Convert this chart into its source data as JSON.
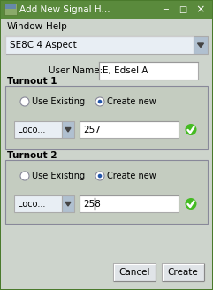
{
  "title_bar_text": "Add New Signal H...",
  "title_bar_color": "#5a8a3c",
  "title_bar_text_color": "#ffffff",
  "menu_item1": "Window",
  "menu_item2": "Help",
  "dropdown_text": "SE8C 4 Aspect",
  "user_name_label": "User Name:",
  "user_name_value": "E, Edsel A",
  "turnout1_label": "Turnout 1",
  "turnout1_radio1": "Use Existing",
  "turnout1_radio2": "Create new",
  "turnout1_dropdown": "Loco...",
  "turnout1_value": "257",
  "turnout2_label": "Turnout 2",
  "turnout2_radio1": "Use Existing",
  "turnout2_radio2": "Create new",
  "turnout2_dropdown": "Loco...",
  "turnout2_value": "258",
  "btn_cancel": "Cancel",
  "btn_create": "Create",
  "bg_color": "#cdd4cc",
  "group_bg": "#c4ccc0",
  "white": "#ffffff",
  "green_check": "#44bb22",
  "radio_fill": "#ffffff",
  "radio_dot": "#2255aa",
  "dropdown_bg": "#e8eef4",
  "dropdown_arrow_bg": "#b0c0d0",
  "btn_bg": "#e0e4e8",
  "border_dark": "#888899",
  "border_mid": "#aaaaaa",
  "text_color": "#000000",
  "title_icon_bg": "#88aa66",
  "outer_border": "#4a7a2c"
}
